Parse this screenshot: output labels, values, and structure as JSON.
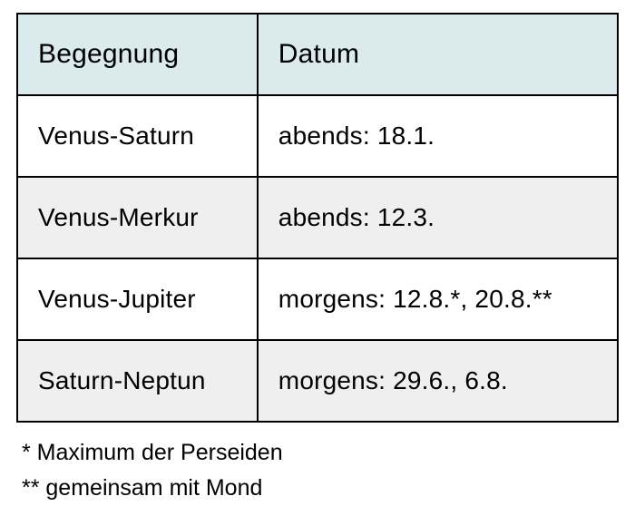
{
  "table": {
    "header_bg": "#dbeaec",
    "alt_row_bg": "#efefef",
    "border_color": "#000000",
    "columns": [
      {
        "label": "Begegnung"
      },
      {
        "label": "Datum"
      }
    ],
    "rows": [
      {
        "encounter": " Venus-Saturn",
        "date": "abends: 18.1."
      },
      {
        "encounter": "Venus-Merkur",
        "date": "abends: 12.3."
      },
      {
        "encounter": "Venus-Jupiter",
        "date": "morgens: 12.8.*, 20.8.**"
      },
      {
        "encounter": " Saturn-Neptun",
        "date": "morgens: 29.6., 6.8."
      }
    ]
  },
  "footnotes": {
    "note1": "* Maximum der Perseiden",
    "note2": "** gemeinsam mit Mond"
  }
}
